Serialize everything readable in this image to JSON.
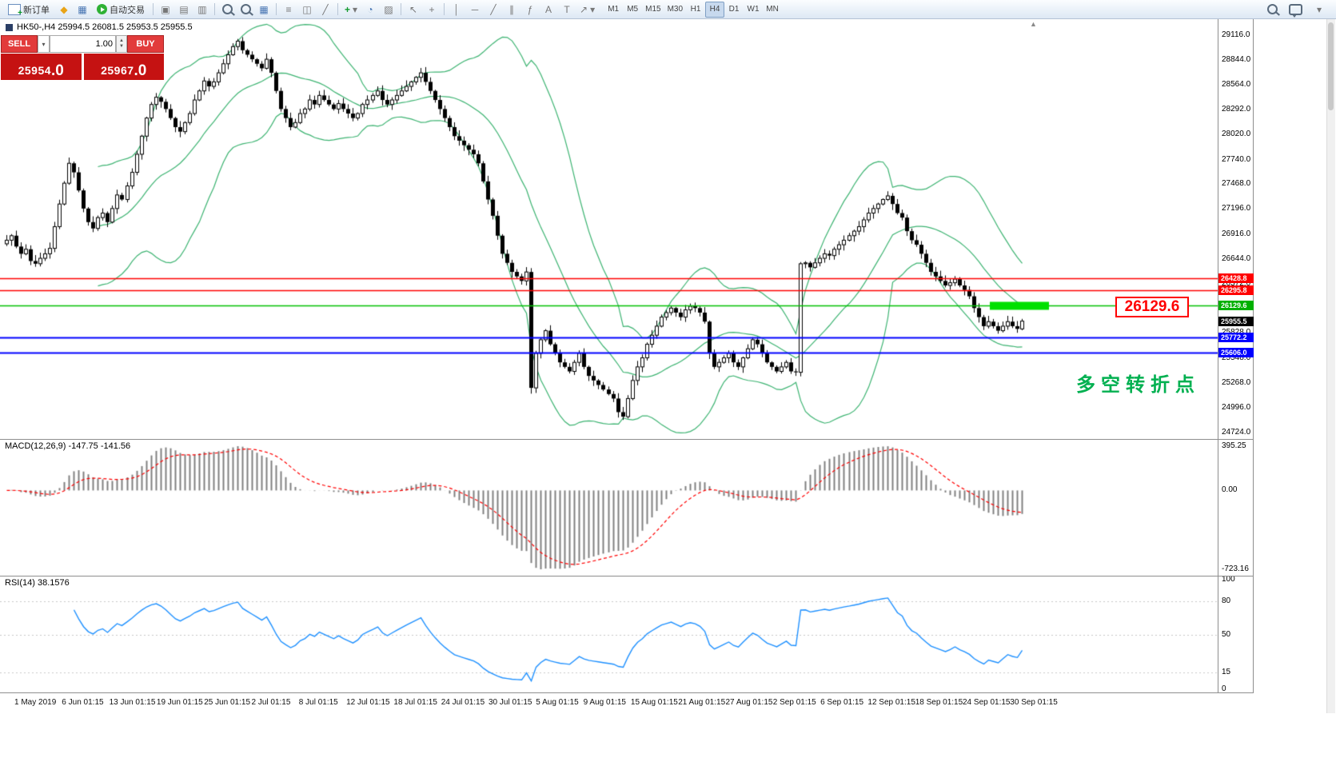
{
  "toolbar": {
    "new_order": {
      "label": "新订单"
    },
    "algo_trading": {
      "label": "自动交易"
    },
    "timeframes": {
      "items": [
        "M1",
        "M5",
        "M15",
        "M30",
        "H1",
        "H4",
        "D1",
        "W1",
        "MN"
      ],
      "active": "H4"
    },
    "icons": {
      "metaeditor": "◆",
      "market_watch": "▦",
      "tile_cascade": "▣",
      "tile_horizontal": "▤",
      "tile_vertical": "▥",
      "zoom_in": "+",
      "zoom_out": "−",
      "grid": "▦",
      "chart_bars": "≡",
      "chart_candles": "◫",
      "chart_line": "╱",
      "indicators_add": "+",
      "periods": "◔",
      "templates": "▨",
      "cursor": "↖",
      "crosshair": "+",
      "vertical_line": "│",
      "horizontal_line": "─",
      "trendline": "╱",
      "channel": "∥",
      "fibonacci": "ƒ",
      "text": "A",
      "label": "T",
      "arrows": "↗",
      "dropdown": "▾"
    }
  },
  "trade_panel": {
    "sell_label": "SELL",
    "buy_label": "BUY",
    "volume": "1.00",
    "sell_price": "25954.0",
    "buy_price": "25967.0"
  },
  "chart": {
    "ohlc_header": "HK50-,H4  25994.5 26081.5 25953.5 25955.5",
    "annotation": "多空转折点",
    "callout": "26129.6",
    "shift_marker": "▲"
  },
  "chart_data": {
    "type": "candlestick",
    "symbol": "HK50-",
    "timeframe": "H4",
    "ohlc_display": {
      "open": 25994.5,
      "high": 26081.5,
      "low": 25953.5,
      "close": 25955.5
    },
    "ylim": [
      24724.0,
      29116.0
    ],
    "price_axis_ticks": [
      29116.0,
      28844.0,
      28564.0,
      28292.0,
      28020.0,
      27740.0,
      27468.0,
      27196.0,
      26916.0,
      26644.0,
      26372.0,
      26100.0,
      25828.0,
      25548.0,
      25268.0,
      24996.0,
      24724.0
    ],
    "closes": [
      26850,
      26900,
      26780,
      26700,
      26750,
      26620,
      26590,
      26650,
      26700,
      26760,
      27000,
      27250,
      27480,
      27700,
      27600,
      27400,
      27200,
      27050,
      26980,
      27100,
      27150,
      27050,
      27200,
      27350,
      27300,
      27450,
      27600,
      27800,
      28000,
      28200,
      28350,
      28430,
      28380,
      28300,
      28200,
      28100,
      28050,
      28150,
      28250,
      28400,
      28500,
      28610,
      28550,
      28600,
      28700,
      28800,
      28900,
      28990,
      29050,
      28950,
      28900,
      28850,
      28800,
      28750,
      28850,
      28700,
      28500,
      28300,
      28200,
      28100,
      28150,
      28250,
      28300,
      28400,
      28350,
      28450,
      28400,
      28350,
      28300,
      28360,
      28300,
      28250,
      28200,
      28250,
      28350,
      28400,
      28450,
      28500,
      28400,
      28350,
      28400,
      28450,
      28500,
      28550,
      28600,
      28650,
      28700,
      28600,
      28500,
      28400,
      28300,
      28200,
      28100,
      28000,
      27950,
      27900,
      27850,
      27800,
      27700,
      27500,
      27300,
      27120,
      26900,
      26700,
      26600,
      26500,
      26450,
      26400,
      26499,
      25218,
      25600,
      25750,
      25850,
      25700,
      25600,
      25500,
      25450,
      25400,
      25500,
      25600,
      25450,
      25350,
      25300,
      25250,
      25200,
      25150,
      25100,
      24950,
      24900,
      25100,
      25300,
      25450,
      25550,
      25700,
      25800,
      25900,
      26000,
      26050,
      26100,
      26050,
      26000,
      26080,
      26120,
      26100,
      26050,
      25950,
      25600,
      25450,
      25500,
      25550,
      25600,
      25500,
      25450,
      25550,
      25650,
      25750,
      25700,
      25600,
      25500,
      25450,
      25400,
      25450,
      25500,
      25400,
      25390,
      26590,
      26600,
      26550,
      26600,
      26650,
      26700,
      26680,
      26750,
      26800,
      26850,
      26900,
      26950,
      27000,
      27075,
      27150,
      27200,
      27250,
      27300,
      27340,
      27250,
      27150,
      27100,
      26950,
      26850,
      26800,
      26700,
      26600,
      26500,
      26450,
      26400,
      26350,
      26380,
      26420,
      26350,
      26300,
      26230,
      26100,
      26000,
      25900,
      25950,
      25900,
      25850,
      25900,
      25950,
      25900,
      25870,
      25955.5
    ],
    "indicators": {
      "bollinger": {
        "period": 20,
        "deviation": 2.0,
        "color": "#3CB371"
      },
      "macd": {
        "label": "MACD(12,26,9) -147.75 -141.56",
        "values_display": [
          -147.75,
          -141.56
        ],
        "axis_labels": [
          "395.25",
          "0.00",
          "-723.16"
        ],
        "histogram_color": "#808080",
        "signal_color": "#ff0000"
      },
      "rsi": {
        "label": "RSI(14) 38.1576",
        "value_display": 38.1576,
        "axis_labels": [
          "100",
          "80",
          "50",
          "15",
          "0"
        ],
        "levels": [
          80,
          50,
          15
        ],
        "color": "#1E90FF"
      }
    },
    "hlines": [
      {
        "price": 26428.8,
        "color": "#ff0000",
        "width": 1.5,
        "tag_bg": "#ff0000",
        "label": "26428.8"
      },
      {
        "price": 26295.8,
        "color": "#ff0000",
        "width": 1.5,
        "tag_bg": "#ff0000",
        "label": "26295.8"
      },
      {
        "price": 26129.6,
        "color": "#00c000",
        "width": 1.5,
        "tag_bg": "#00b000",
        "label": "26129.6",
        "highlight": true
      },
      {
        "price": 25955.5,
        "color": null,
        "width": 0,
        "tag_bg": "#000000",
        "label": "25955.5",
        "is_price": true
      },
      {
        "price": 25772.2,
        "color": "#0000ff",
        "width": 2,
        "tag_bg": "#0000ff",
        "label": "25772.2"
      },
      {
        "price": 25606.0,
        "color": "#0000ff",
        "width": 2,
        "tag_bg": "#0000ff",
        "label": "25606.0"
      }
    ],
    "time_labels": [
      "1 May 2019",
      "6 Jun 01:15",
      "13 Jun 01:15",
      "19 Jun 01:15",
      "25 Jun 01:15",
      "2 Jul 01:15",
      "8 Jul 01:15",
      "12 Jul 01:15",
      "18 Jul 01:15",
      "24 Jul 01:15",
      "30 Jul 01:15",
      "5 Aug 01:15",
      "9 Aug 01:15",
      "15 Aug 01:15",
      "21 Aug 01:15",
      "27 Aug 01:15",
      "2 Sep 01:15",
      "6 Sep 01:15",
      "12 Sep 01:15",
      "18 Sep 01:15",
      "24 Sep 01:15",
      "30 Sep 01:15"
    ]
  }
}
